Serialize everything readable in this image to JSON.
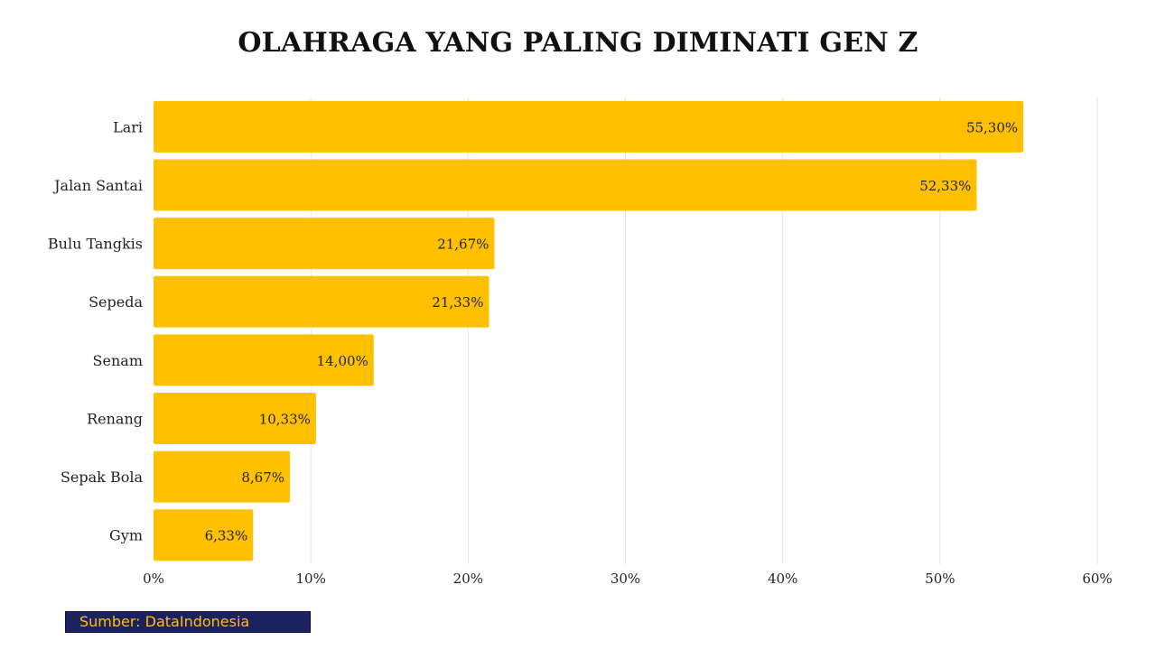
{
  "chart_data": {
    "type": "bar",
    "orientation": "horizontal",
    "title": "OLAHRAGA YANG PALING DIMINATI GEN Z",
    "categories": [
      "Lari",
      "Jalan Santai",
      "Bulu Tangkis",
      "Sepeda",
      "Senam",
      "Renang",
      "Sepak Bola",
      "Gym"
    ],
    "values": [
      55.3,
      52.33,
      21.67,
      21.33,
      14.0,
      10.33,
      8.67,
      6.33
    ],
    "value_labels": [
      "55,30%",
      "52,33%",
      "21,67%",
      "21,33%",
      "14,00%",
      "10,33%",
      "8,67%",
      "6,33%"
    ],
    "xlim": [
      0,
      60
    ],
    "x_ticks": [
      0,
      10,
      20,
      30,
      40,
      50,
      60
    ],
    "x_tick_labels": [
      "0%",
      "10%",
      "20%",
      "30%",
      "40%",
      "50%",
      "60%"
    ],
    "grid": "vertical",
    "bar_color": "#ffc000",
    "grid_color": "#e3e3e3"
  },
  "source": {
    "label": "Sumber: DataIndonesia",
    "background_color": "#1c2161",
    "text_color": "#ffc000"
  }
}
